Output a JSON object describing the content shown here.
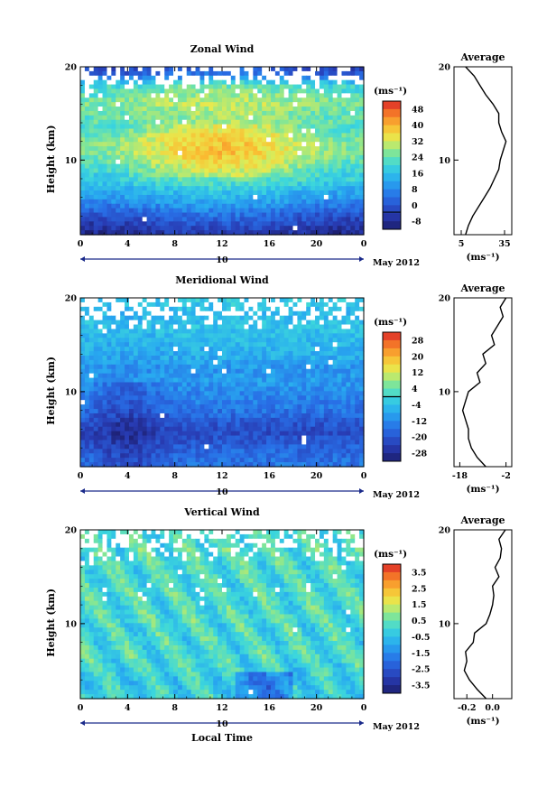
{
  "figure": {
    "date_label": "May 2012",
    "xlabel": "Local Time",
    "day_label": "10"
  },
  "chart_data": [
    {
      "type": "heatmap",
      "title": "Zonal Wind",
      "ylabel": "Height (km)",
      "colorbar_unit": "(ms⁻¹)",
      "x_ticks": [
        "0",
        "4",
        "8",
        "12",
        "16",
        "20",
        "0"
      ],
      "xlim": [
        0,
        24
      ],
      "y_ticks": [
        "20",
        "10"
      ],
      "ylim": [
        2,
        20
      ],
      "colorbar_ticks": [
        "48",
        "40",
        "32",
        "24",
        "16",
        "8",
        "0",
        "-8"
      ],
      "colorbar_range": [
        -8,
        52
      ],
      "contour_level": 0,
      "profile_cols": [
        -3,
        0,
        4,
        9,
        14,
        17,
        22,
        27,
        30,
        33,
        33,
        32,
        29,
        27,
        28,
        30,
        26,
        24,
        6,
        2
      ],
      "height_rows": [
        2,
        3,
        4,
        5,
        6,
        7,
        8,
        9,
        10,
        11,
        12,
        13,
        14,
        15,
        16,
        17,
        18,
        19,
        20
      ],
      "average_profile": {
        "title": "Average",
        "xlabel": "(ms⁻¹)",
        "x_ticks": [
          "5",
          "35"
        ],
        "xlim": [
          0,
          40
        ],
        "y_ticks": [
          "20",
          "10"
        ],
        "height": [
          2,
          3,
          4,
          5,
          6,
          7,
          8,
          9,
          10,
          11,
          12,
          13,
          14,
          15,
          16,
          17,
          18,
          19,
          20
        ],
        "values": [
          8,
          10,
          13,
          17,
          21,
          25,
          28,
          31,
          32,
          34,
          36,
          33,
          31,
          31,
          27,
          22,
          18,
          14,
          8
        ]
      }
    },
    {
      "type": "heatmap",
      "title": "Meridional Wind",
      "ylabel": "Height (km)",
      "colorbar_unit": "(ms⁻¹)",
      "x_ticks": [
        "0",
        "4",
        "8",
        "12",
        "16",
        "20",
        "0"
      ],
      "xlim": [
        0,
        24
      ],
      "y_ticks": [
        "20",
        "10"
      ],
      "ylim": [
        2,
        20
      ],
      "colorbar_ticks": [
        "28",
        "20",
        "12",
        "4",
        "-4",
        "-12",
        "-20",
        "-28"
      ],
      "colorbar_range": [
        -30,
        30
      ],
      "contour_level": 0,
      "profile_cols": [
        -14,
        -15,
        -16,
        -17,
        -16,
        -15,
        -14,
        -13,
        -12,
        -10,
        -9,
        -10,
        -7,
        -6,
        -5,
        -4,
        -3,
        -5,
        -3,
        -2
      ],
      "height_rows": [
        2,
        3,
        4,
        5,
        6,
        7,
        8,
        9,
        10,
        11,
        12,
        13,
        14,
        15,
        16,
        17,
        18,
        19,
        20
      ],
      "average_profile": {
        "title": "Average",
        "xlabel": "(ms⁻¹)",
        "x_ticks": [
          "-18",
          "-2"
        ],
        "xlim": [
          -20,
          0
        ],
        "y_ticks": [
          "20",
          "10"
        ],
        "height": [
          2,
          3,
          4,
          5,
          6,
          7,
          8,
          9,
          10,
          11,
          12,
          13,
          14,
          15,
          16,
          17,
          18,
          19,
          20
        ],
        "values": [
          -9,
          -12,
          -14,
          -15,
          -15,
          -16,
          -17,
          -16,
          -15,
          -11,
          -12,
          -9,
          -10,
          -6,
          -7,
          -5,
          -3,
          -4,
          -2
        ]
      }
    },
    {
      "type": "heatmap",
      "title": "Vertical Wind",
      "ylabel": "Height (km)",
      "colorbar_unit": "(ms⁻¹)",
      "x_ticks": [
        "0",
        "4",
        "8",
        "12",
        "16",
        "20",
        "0"
      ],
      "xlim": [
        0,
        24
      ],
      "y_ticks": [
        "20",
        "10"
      ],
      "ylim": [
        2,
        20
      ],
      "colorbar_ticks": [
        "3.5",
        "2.5",
        "1.5",
        "0.5",
        "-0.5",
        "-1.5",
        "-2.5",
        "-3.5"
      ],
      "colorbar_range": [
        -4,
        4
      ],
      "contour_level": null,
      "profile_cols": [
        -0.1,
        -0.2,
        -0.2,
        -0.1,
        0.0,
        0.1,
        0.0,
        0.1,
        0.0,
        0.2,
        0.1,
        0.1,
        0.2,
        0.1,
        0.1,
        0.2,
        0.1,
        0.2,
        0.1,
        0.2
      ],
      "height_rows": [
        2,
        3,
        4,
        5,
        6,
        7,
        8,
        9,
        10,
        11,
        12,
        13,
        14,
        15,
        16,
        17,
        18,
        19,
        20
      ],
      "average_profile": {
        "title": "Average",
        "xlabel": "(ms⁻¹)",
        "x_ticks": [
          "-0.2",
          "0.0"
        ],
        "xlim": [
          -0.3,
          0.15
        ],
        "y_ticks": [
          "20",
          "10"
        ],
        "height": [
          2,
          3,
          4,
          5,
          6,
          7,
          8,
          9,
          10,
          11,
          12,
          13,
          14,
          15,
          16,
          17,
          18,
          19,
          20
        ],
        "values": [
          -0.05,
          -0.12,
          -0.18,
          -0.22,
          -0.2,
          -0.21,
          -0.15,
          -0.14,
          -0.05,
          -0.02,
          0.0,
          0.01,
          0.0,
          0.05,
          0.02,
          0.06,
          0.07,
          0.05,
          0.1
        ]
      }
    }
  ]
}
